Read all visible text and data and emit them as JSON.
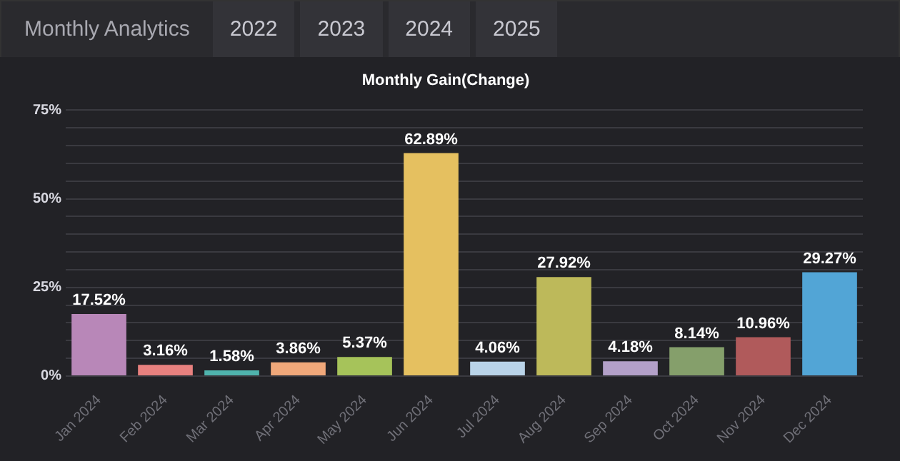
{
  "chart_data": {
    "type": "bar",
    "title": "Monthly Gain(Change)",
    "annotations": [
      "Monthly Analytics",
      "2022",
      "2023",
      "2024",
      "2025"
    ],
    "categories": [
      "Jan 2024",
      "Feb 2024",
      "Mar 2024",
      "Apr 2024",
      "May 2024",
      "Jun 2024",
      "Jul 2024",
      "Aug 2024",
      "Sep 2024",
      "Oct 2024",
      "Nov 2024",
      "Dec 2024"
    ],
    "values": [
      17.52,
      3.16,
      1.58,
      3.86,
      5.37,
      62.89,
      4.06,
      27.92,
      4.18,
      8.14,
      10.96,
      29.27
    ],
    "value_labels": [
      "17.52%",
      "3.16%",
      "1.58%",
      "3.86%",
      "5.37%",
      "62.89%",
      "4.06%",
      "27.92%",
      "4.18%",
      "8.14%",
      "10.96%",
      "29.27%"
    ],
    "colors": [
      "#b887b8",
      "#e8817f",
      "#4fb3ad",
      "#f0a87a",
      "#a6c35a",
      "#e5c060",
      "#b9d3e8",
      "#bdb95a",
      "#b3a0c8",
      "#859f6b",
      "#b05a5b",
      "#52a5d6"
    ],
    "ylim": [
      0,
      75
    ],
    "yticks": [
      {
        "value": 0,
        "label": "0%"
      },
      {
        "value": 5,
        "label": null
      },
      {
        "value": 10,
        "label": null
      },
      {
        "value": 15,
        "label": null
      },
      {
        "value": 20,
        "label": null
      },
      {
        "value": 25,
        "label": "25%"
      },
      {
        "value": 30,
        "label": null
      },
      {
        "value": 35,
        "label": null
      },
      {
        "value": 40,
        "label": null
      },
      {
        "value": 45,
        "label": null
      },
      {
        "value": 50,
        "label": "50%"
      },
      {
        "value": 55,
        "label": null
      },
      {
        "value": 60,
        "label": null
      },
      {
        "value": 65,
        "label": null
      },
      {
        "value": 70,
        "label": null
      },
      {
        "value": 75,
        "label": "75%"
      }
    ],
    "grid": "y",
    "legend": false
  }
}
